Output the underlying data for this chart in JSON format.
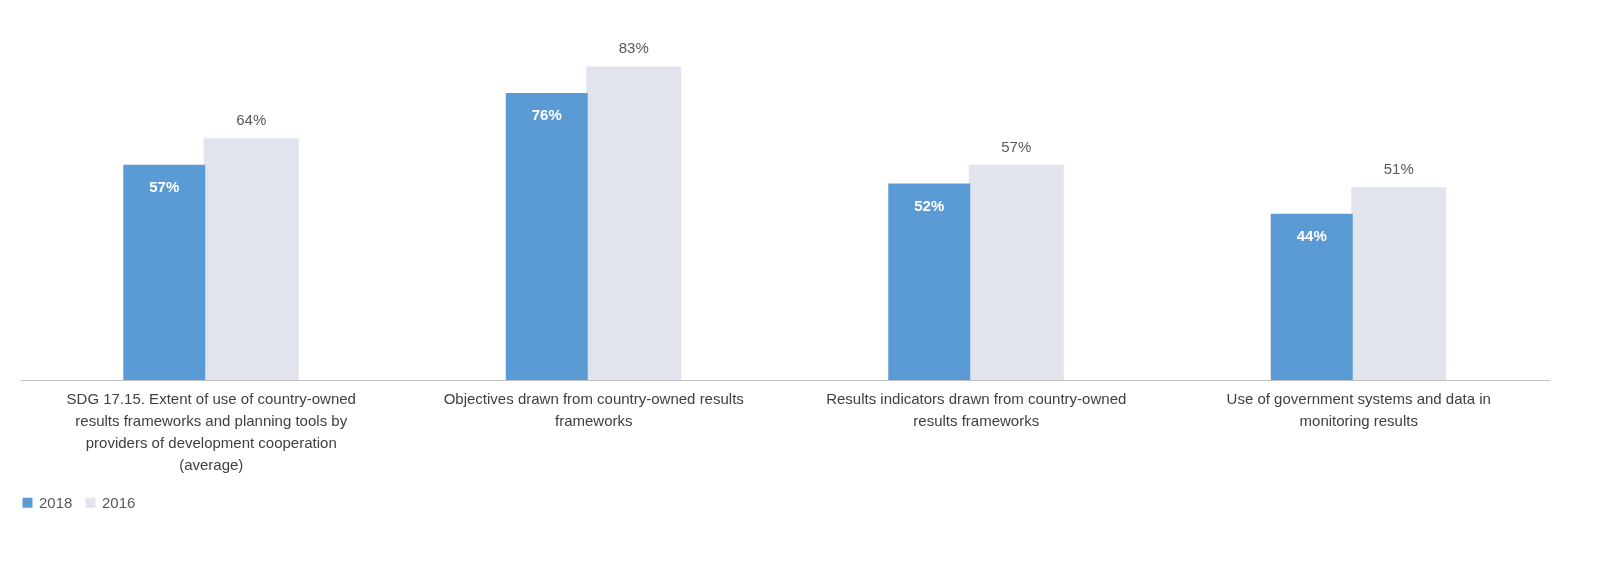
{
  "chart_data": {
    "type": "bar",
    "categories": [
      "SDG 17.15. Extent of use of country-owned results frameworks and planning tools by providers of development cooperation (average)",
      "Objectives drawn from country-owned results frameworks",
      "Results indicators drawn from country-owned results frameworks",
      "Use of government systems and data in monitoring results"
    ],
    "series": [
      {
        "name": "2018",
        "color": "#5b9bd5",
        "values": [
          57,
          76,
          52,
          44
        ],
        "value_labels": [
          "57%",
          "76%",
          "52%",
          "44%"
        ]
      },
      {
        "name": "2016",
        "color": "#e1e4ec",
        "values": [
          64,
          83,
          57,
          51
        ],
        "value_labels": [
          "64%",
          "83%",
          "57%",
          "51%"
        ]
      }
    ],
    "legend": "bottom",
    "grid": false
  }
}
